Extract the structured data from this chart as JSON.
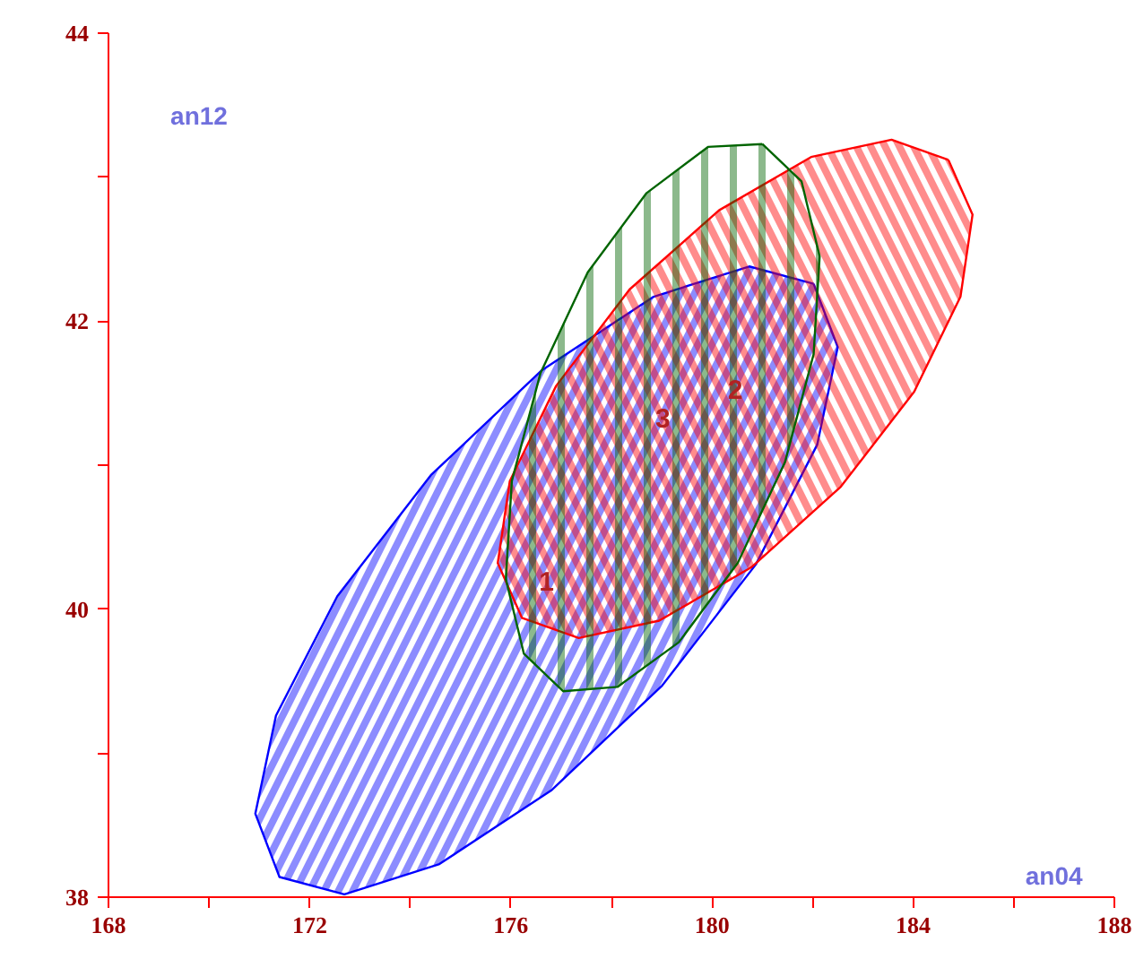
{
  "chart_data": {
    "type": "area",
    "xlabel": "an04",
    "ylabel": "an12",
    "xlim": [
      168,
      188
    ],
    "ylim": [
      38,
      44
    ],
    "xticks": [
      168,
      {
        "value": 170,
        "label": null
      },
      172,
      {
        "value": 174,
        "label": null
      },
      176,
      {
        "value": 178,
        "label": null
      },
      180,
      {
        "value": 182,
        "label": null
      },
      184,
      {
        "value": 186,
        "label": null
      },
      188
    ],
    "yticks": [
      38,
      {
        "value": 39,
        "label": null
      },
      40,
      {
        "value": 41,
        "label": null
      },
      42,
      {
        "value": 43,
        "label": null
      },
      44
    ],
    "grid": false,
    "line_style": "solid",
    "series": [
      {
        "name": "1",
        "color": "#0000ff",
        "x": [
          182.02,
          180.74,
          178.84,
          176.62,
          174.41,
          172.55,
          171.33,
          170.92,
          171.4,
          172.69,
          174.58,
          176.8,
          179.01,
          180.87,
          182.09,
          182.5,
          182.02
        ],
        "values": [
          42.26,
          42.38,
          42.17,
          41.66,
          40.93,
          40.09,
          39.26,
          38.58,
          38.14,
          38.02,
          38.23,
          38.74,
          39.47,
          40.31,
          41.14,
          41.82,
          42.26
        ]
      },
      {
        "name": "2",
        "color": "#ff0000",
        "x": [
          184.7,
          183.57,
          181.97,
          180.14,
          178.36,
          176.9,
          175.98,
          175.74,
          176.22,
          177.35,
          178.95,
          180.78,
          182.56,
          184.02,
          184.94,
          185.18,
          184.7
        ],
        "values": [
          43.12,
          43.26,
          43.14,
          42.77,
          42.22,
          41.55,
          40.89,
          40.32,
          39.94,
          39.8,
          39.92,
          40.29,
          40.85,
          41.51,
          42.17,
          42.74,
          43.12
        ]
      },
      {
        "name": "3",
        "color": "#006400",
        "x": [
          181.0,
          179.92,
          178.7,
          177.53,
          176.59,
          176.02,
          175.9,
          176.26,
          177.04,
          178.12,
          179.34,
          180.51,
          181.45,
          182.02,
          182.14,
          181.78,
          181.0
        ],
        "values": [
          43.23,
          43.21,
          42.89,
          42.34,
          41.64,
          40.89,
          40.21,
          39.69,
          39.43,
          39.46,
          39.77,
          40.32,
          41.02,
          41.77,
          42.45,
          42.97,
          43.23
        ]
      }
    ]
  }
}
